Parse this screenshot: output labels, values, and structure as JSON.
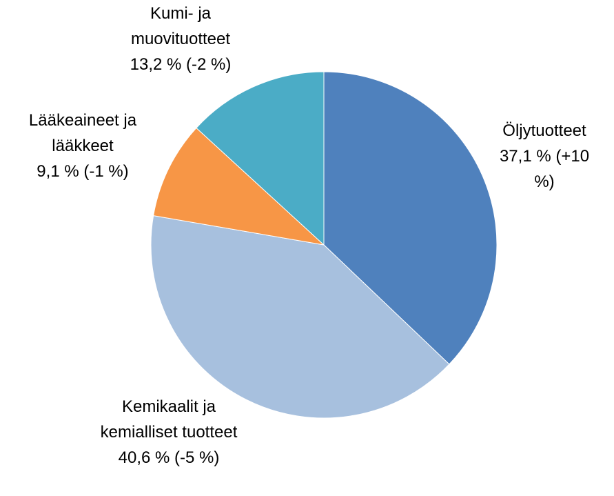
{
  "chart_data": {
    "type": "pie",
    "categories": [
      "Öljytuotteet",
      "Kemikaalit ja kemialliset tuotteet",
      "Lääkeaineet ja lääkkeet",
      "Kumi- ja muovituotteet"
    ],
    "values": [
      37.1,
      40.6,
      9.1,
      13.2
    ],
    "value_labels": [
      "37,1 %",
      "40,6 %",
      "9,1 %",
      "13,2 %"
    ],
    "changes": [
      "(+10 %)",
      "(-5 %)",
      "(-1 %)",
      "(-2 %)"
    ],
    "colors": [
      "#4f81bd",
      "#a7c0de",
      "#f79646",
      "#4bacc6"
    ]
  }
}
